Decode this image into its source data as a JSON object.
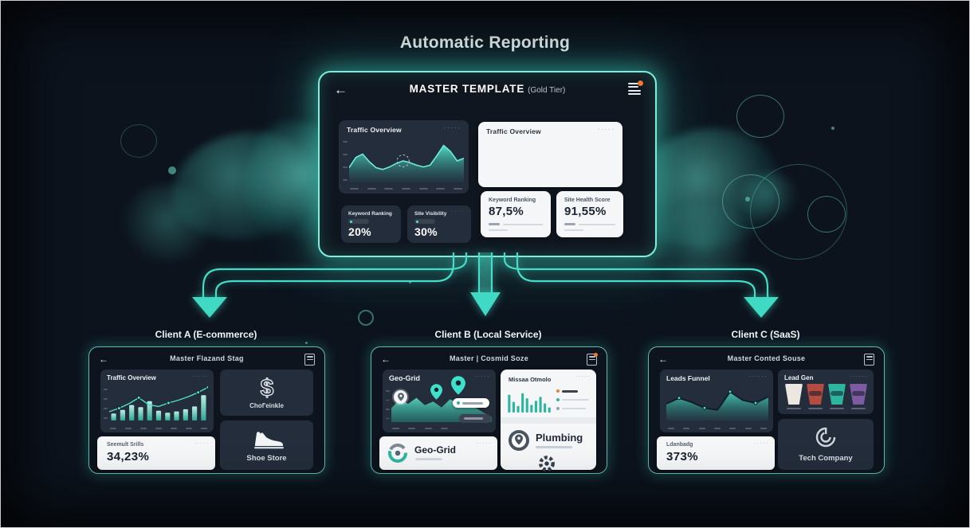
{
  "page": {
    "title": "Automatic Reporting"
  },
  "colors": {
    "background": "#0c131d",
    "accent_teal": "#46dcc6",
    "glow_teal": "#7df0dd",
    "dark_card": "#242d3b",
    "white_card": "#f4f6f8",
    "orange_notification": "#f0772e"
  },
  "master": {
    "back_icon": "←",
    "title": "MASTER TEMPLATE",
    "tier": "(Gold Tier)",
    "traffic_card": {
      "title": "Traffic Overview",
      "dots": "·····"
    },
    "traffic_white_card": {
      "title": "Traffic Overview",
      "dots": "·····"
    },
    "keyword_card": {
      "title": "Keyword Ranking",
      "value": "20%"
    },
    "visibility_card": {
      "title": "Site Visibility",
      "value": "30%",
      "dots": "····"
    },
    "keyword_white_card": {
      "title": "Keyword Ranking",
      "value": "87,5%"
    },
    "health_white_card": {
      "title": "Site Health Score",
      "value": "91,55%"
    }
  },
  "clients": {
    "a": {
      "label": "Client A (E-commerce)",
      "back_icon": "←",
      "header_title": "Master Flazand Stag",
      "traffic_card": {
        "title": "Traffic Overview",
        "dots": "·····"
      },
      "stat_card": {
        "title": "Seemult Srills",
        "value": "34,23%",
        "dots": "·····"
      },
      "money_card": {
        "icon": "$",
        "label": "Chof'einkle"
      },
      "shoe_card": {
        "label": "Shoe Store"
      }
    },
    "b": {
      "label": "Client B (Local Service)",
      "back_icon": "←",
      "header_title": "Master | Cosmid Soze",
      "geo_card": {
        "title": "Geo-Grid",
        "dots": "·····"
      },
      "report_card": {
        "title": "Missaa Otmolo",
        "dots": "·····",
        "business": "Plumbing"
      },
      "geo_white_card": {
        "title": "Geo-Grid",
        "dots": "·····"
      },
      "legend": [
        {
          "color": "#f0812e"
        },
        {
          "color": "#2db5a0"
        },
        {
          "color": "#97a3b0"
        }
      ]
    },
    "c": {
      "label": "Client C (SaaS)",
      "back_icon": "←",
      "header_title": "Master Conted Souse",
      "funnel_card": {
        "title": "Leads Funnel",
        "dots": "······"
      },
      "stat_card": {
        "title": "Ldanbadg",
        "value": "373%",
        "dots": "·····"
      },
      "leadgen_card": {
        "title": "Lead Gen",
        "dots": "······"
      },
      "company_card": {
        "label": "Tech Company"
      },
      "funnels": [
        {
          "color": "#ece8df"
        },
        {
          "color": "#b34d42"
        },
        {
          "color": "#2db5a0"
        },
        {
          "color": "#7d5ba3"
        }
      ]
    }
  },
  "chart_data": [
    {
      "id": "master_traffic_overview",
      "type": "area",
      "values": [
        34,
        58,
        66,
        48,
        34,
        30,
        36,
        44,
        50,
        46,
        40,
        36,
        40,
        62,
        86,
        72,
        50,
        56
      ],
      "highlight_index": 8,
      "color": "#4fe3cd",
      "title": "Traffic Overview"
    },
    {
      "id": "client_a_traffic",
      "type": "bar",
      "values": [
        20,
        30,
        44,
        38,
        55,
        28,
        22,
        26,
        32,
        40,
        72
      ],
      "line": [
        25,
        35,
        48,
        65,
        45,
        40,
        50,
        58,
        68,
        80,
        95
      ],
      "marker_indices": [
        1,
        3,
        6,
        9,
        10
      ],
      "color": "#4fe3cd",
      "title": "Traffic Overview"
    },
    {
      "id": "client_b_geo_terrain",
      "type": "area",
      "values": [
        38,
        62,
        50,
        66,
        46,
        56,
        40,
        62,
        52,
        58,
        40,
        26,
        14
      ],
      "color": "#3fc9b4",
      "title": "Geo-Grid"
    },
    {
      "id": "client_b_mini_bars",
      "type": "bar",
      "values": [
        70,
        42,
        26,
        76,
        56,
        30,
        46,
        62,
        36,
        20
      ],
      "color": "#2db5a0",
      "title": "Missaa Otmolo"
    },
    {
      "id": "client_c_leads_funnel",
      "type": "line",
      "values": [
        48,
        64,
        52,
        36,
        30,
        82,
        58,
        50,
        68
      ],
      "marker_indices": [
        1,
        3,
        5,
        7
      ],
      "color": "#3fd9c4",
      "title": "Leads Funnel"
    }
  ]
}
